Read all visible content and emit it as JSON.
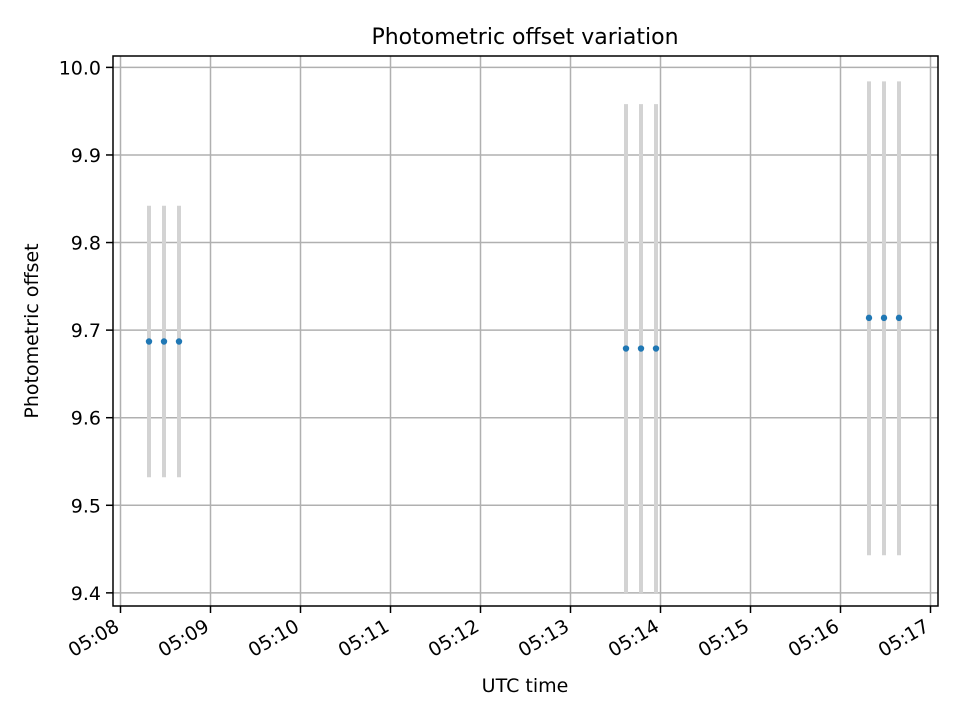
{
  "chart_data": {
    "type": "scatter",
    "title": "Photometric offset variation",
    "xlabel": "UTC time",
    "ylabel": "Photometric offset",
    "x_ticks": [
      "05:08",
      "05:09",
      "05:10",
      "05:11",
      "05:12",
      "05:13",
      "05:14",
      "05:15",
      "05:16",
      "05:17"
    ],
    "y_ticks": [
      "9.4",
      "9.5",
      "9.6",
      "9.7",
      "9.8",
      "9.9",
      "10.0"
    ],
    "xlim": [
      "05:07:55",
      "05:17:05"
    ],
    "ylim": [
      9.385,
      10.013
    ],
    "grid": true,
    "series": [
      {
        "marker_color": "#1f77b4",
        "errorbar_color": "#d3d3d3",
        "points": [
          {
            "x": "05:08:19",
            "y": 9.687,
            "yerr_low": 9.532,
            "yerr_high": 9.842
          },
          {
            "x": "05:08:29",
            "y": 9.687,
            "yerr_low": 9.532,
            "yerr_high": 9.842
          },
          {
            "x": "05:08:39",
            "y": 9.687,
            "yerr_low": 9.532,
            "yerr_high": 9.842
          },
          {
            "x": "05:13:37",
            "y": 9.679,
            "yerr_low": 9.4,
            "yerr_high": 9.958
          },
          {
            "x": "05:13:47",
            "y": 9.679,
            "yerr_low": 9.4,
            "yerr_high": 9.958
          },
          {
            "x": "05:13:57",
            "y": 9.679,
            "yerr_low": 9.4,
            "yerr_high": 9.958
          },
          {
            "x": "05:16:19",
            "y": 9.714,
            "yerr_low": 9.443,
            "yerr_high": 9.984
          },
          {
            "x": "05:16:29",
            "y": 9.714,
            "yerr_low": 9.443,
            "yerr_high": 9.984
          },
          {
            "x": "05:16:39",
            "y": 9.714,
            "yerr_low": 9.443,
            "yerr_high": 9.984
          }
        ]
      }
    ]
  }
}
